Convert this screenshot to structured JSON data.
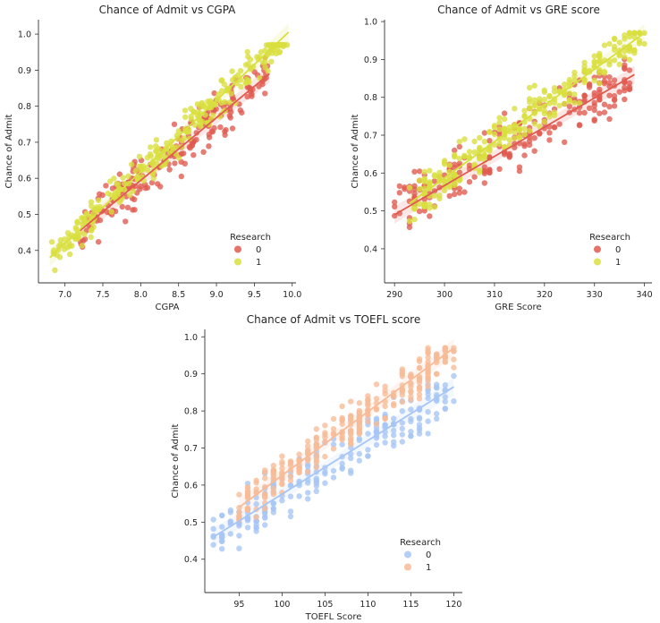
{
  "chart_data": [
    {
      "type": "scatter",
      "title": "Chance of Admit vs CGPA",
      "xlabel": "CGPA",
      "ylabel": "Chance of Admit",
      "xlim": [
        6.65,
        10.05
      ],
      "ylim": [
        0.31,
        1.04
      ],
      "xticks": [
        "7.0",
        "7.5",
        "8.0",
        "8.5",
        "9.0",
        "9.5",
        "10.0"
      ],
      "xtick_values": [
        7.0,
        7.5,
        8.0,
        8.5,
        9.0,
        9.5,
        10.0
      ],
      "yticks": [
        "0.4",
        "0.5",
        "0.6",
        "0.7",
        "0.8",
        "0.9",
        "1.0"
      ],
      "ytick_values": [
        0.4,
        0.5,
        0.6,
        0.7,
        0.8,
        0.9,
        1.0
      ],
      "legend": {
        "title": "Research",
        "position": "lower-right",
        "entries": [
          "0",
          "1"
        ]
      },
      "colors": [
        "#e05a50",
        "#d8df3e"
      ],
      "fit_lines": [
        {
          "name": "0",
          "x": [
            7.2,
            9.7
          ],
          "y": [
            0.455,
            0.89
          ]
        },
        {
          "name": "1",
          "x": [
            6.8,
            9.95
          ],
          "y": [
            0.38,
            1.005
          ]
        }
      ],
      "series": [
        {
          "name": "0",
          "x_range": [
            7.2,
            9.7
          ],
          "center": 0.455,
          "slope": 0.174,
          "spread": 0.07,
          "n": 200
        },
        {
          "name": "1",
          "x_range": [
            6.8,
            9.95
          ],
          "center": 0.38,
          "slope": 0.198,
          "spread": 0.05,
          "n": 280
        }
      ]
    },
    {
      "type": "scatter",
      "title": "Chance of Admit vs GRE score",
      "xlabel": "GRE Score",
      "ylabel": "Chance of Admit",
      "xlim": [
        288,
        341.5
      ],
      "ylim": [
        0.31,
        1.005
      ],
      "xticks": [
        "290",
        "300",
        "310",
        "320",
        "330",
        "340"
      ],
      "xtick_values": [
        290,
        300,
        310,
        320,
        330,
        340
      ],
      "yticks": [
        "0.4",
        "0.5",
        "0.6",
        "0.7",
        "0.8",
        "0.9",
        "1.0"
      ],
      "ytick_values": [
        0.4,
        0.5,
        0.6,
        0.7,
        0.8,
        0.9,
        1.0
      ],
      "legend": {
        "title": "Research",
        "position": "lower-right",
        "entries": [
          "0",
          "1"
        ]
      },
      "colors": [
        "#e05a50",
        "#d8df3e"
      ],
      "fit_lines": [
        {
          "name": "0",
          "x": [
            290,
            338
          ],
          "y": [
            0.49,
            0.86
          ]
        },
        {
          "name": "1",
          "x": [
            293,
            340
          ],
          "y": [
            0.52,
            0.97
          ]
        }
      ],
      "series": [
        {
          "name": "0",
          "x_range": [
            290,
            338
          ],
          "center": 0.49,
          "slope": 0.0077,
          "spread": 0.08,
          "n": 220
        },
        {
          "name": "1",
          "x_range": [
            293,
            340
          ],
          "center": 0.52,
          "slope": 0.0096,
          "spread": 0.06,
          "n": 280
        }
      ]
    },
    {
      "type": "scatter",
      "title": "Chance of Admit vs TOEFL score",
      "xlabel": "TOEFL Score",
      "ylabel": "Chance of Admit",
      "xlim": [
        91,
        121
      ],
      "ylim": [
        0.31,
        1.02
      ],
      "xticks": [
        "95",
        "100",
        "105",
        "110",
        "115",
        "120"
      ],
      "xtick_values": [
        95,
        100,
        105,
        110,
        115,
        120
      ],
      "yticks": [
        "0.4",
        "0.5",
        "0.6",
        "0.7",
        "0.8",
        "0.9",
        "1.0"
      ],
      "ytick_values": [
        0.4,
        0.5,
        0.6,
        0.7,
        0.8,
        0.9,
        1.0
      ],
      "legend": {
        "title": "Research",
        "position": "lower-right",
        "entries": [
          "0",
          "1"
        ]
      },
      "colors": [
        "#a7c5f5",
        "#f7bb97"
      ],
      "fit_lines": [
        {
          "name": "0",
          "x": [
            92,
            120
          ],
          "y": [
            0.46,
            0.865
          ]
        },
        {
          "name": "1",
          "x": [
            95,
            120
          ],
          "y": [
            0.54,
            0.97
          ]
        }
      ],
      "series": [
        {
          "name": "0",
          "x_range": [
            92,
            120
          ],
          "center": 0.46,
          "slope": 0.0145,
          "spread": 0.08,
          "n": 220
        },
        {
          "name": "1",
          "x_range": [
            95,
            120
          ],
          "center": 0.54,
          "slope": 0.0172,
          "spread": 0.06,
          "n": 280
        }
      ]
    }
  ]
}
